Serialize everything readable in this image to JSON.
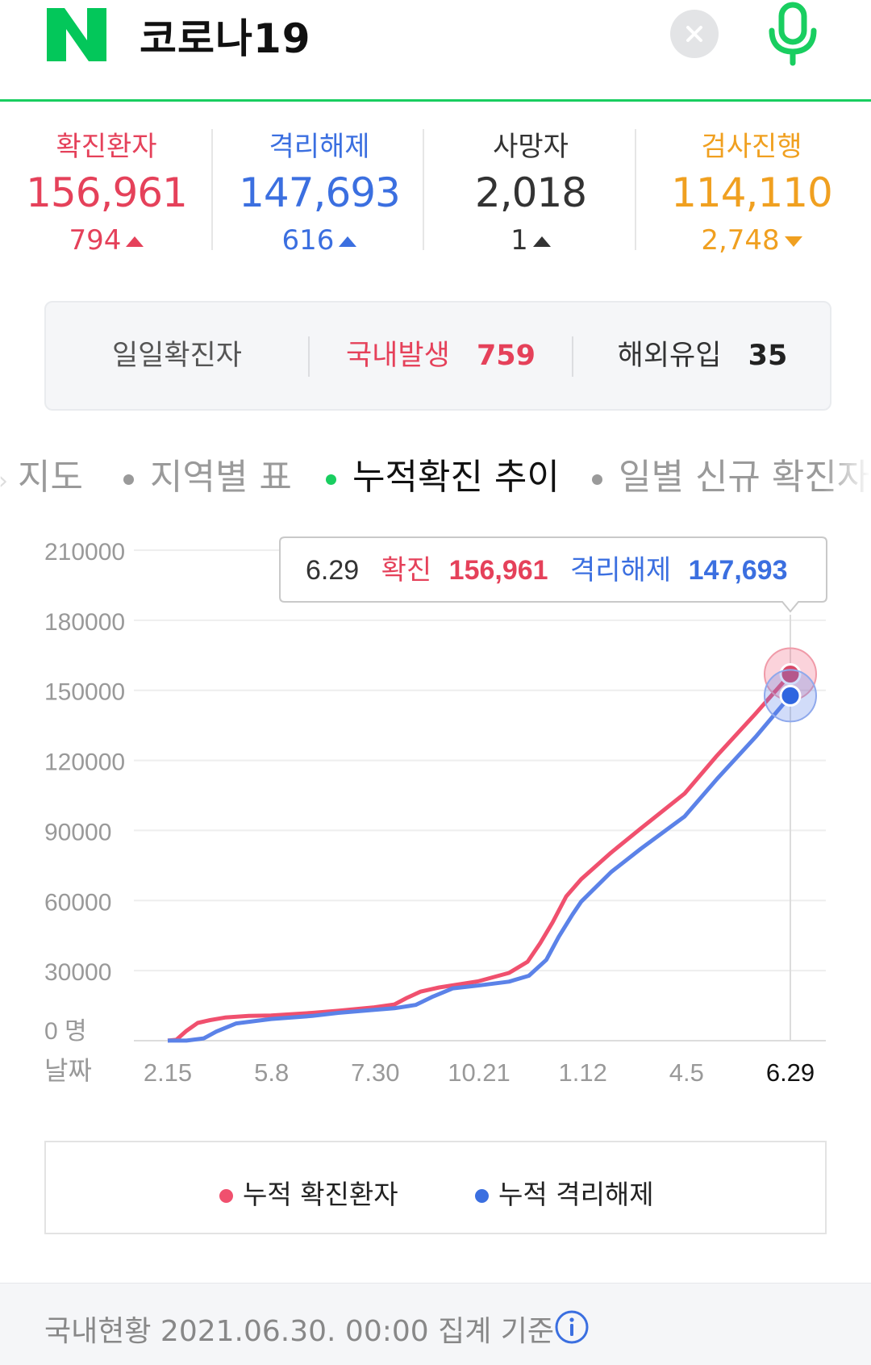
{
  "header": {
    "logo_letter": "N",
    "search_query": "코로나19",
    "brand_color": "#03c75a"
  },
  "stats": [
    {
      "label": "확진환자",
      "value": "156,961",
      "delta": "794",
      "direction": "up",
      "color": "#e5415a",
      "arrow_color": "#e5415a"
    },
    {
      "label": "격리해제",
      "value": "147,693",
      "delta": "616",
      "direction": "up",
      "color": "#3b6fe0",
      "arrow_color": "#3b6fe0"
    },
    {
      "label": "사망자",
      "value": "2,018",
      "delta": "1",
      "direction": "up",
      "color": "#333333",
      "arrow_color": "#333333"
    },
    {
      "label": "검사진행",
      "value": "114,110",
      "delta": "2,748",
      "direction": "down",
      "color": "#f0a020",
      "arrow_color": "#f0a020"
    }
  ],
  "daily": {
    "label": "일일확진자",
    "domestic_label": "국내발생",
    "domestic_value": "759",
    "overseas_label": "해외유입",
    "overseas_value": "35"
  },
  "tabs": [
    {
      "label": "지도",
      "active": false
    },
    {
      "label": "지역별 표",
      "active": false
    },
    {
      "label": "누적확진 추이",
      "active": true
    },
    {
      "label": "일별 신규 확진자",
      "active": false
    }
  ],
  "tooltip": {
    "date": "6.29",
    "confirmed_label": "확진",
    "confirmed_value": "156,961",
    "released_label": "격리해제",
    "released_value": "147,693"
  },
  "legend": {
    "confirmed": "누적 확진환자",
    "released": "누적 격리해제"
  },
  "footer": {
    "text": "국내현황 2021.06.30. 00:00 집계 기준"
  },
  "chart_data": {
    "type": "line",
    "y_unit_label": "명",
    "x_axis_label": "날짜",
    "ylim": [
      0,
      210000
    ],
    "y_ticks": [
      0,
      30000,
      60000,
      90000,
      120000,
      150000,
      180000,
      210000
    ],
    "x_ticks": [
      "2.15",
      "5.8",
      "7.30",
      "10.21",
      "1.12",
      "4.5",
      "6.29"
    ],
    "grid": true,
    "series": [
      {
        "name": "누적 확진환자",
        "color": "#f0506e",
        "x": [
          "2020-02-15",
          "2020-02-22",
          "2020-03-01",
          "2020-03-10",
          "2020-03-20",
          "2020-04-01",
          "2020-04-20",
          "2020-05-08",
          "2020-06-10",
          "2020-07-01",
          "2020-07-30",
          "2020-08-15",
          "2020-08-25",
          "2020-09-05",
          "2020-09-20",
          "2020-10-21",
          "2020-11-15",
          "2020-11-30",
          "2020-12-10",
          "2020-12-20",
          "2020-12-31",
          "2021-01-12",
          "2021-02-05",
          "2021-03-01",
          "2021-04-05",
          "2021-05-01",
          "2021-06-01",
          "2021-06-29"
        ],
        "y": [
          30,
          400,
          4200,
          7600,
          8800,
          9900,
          10600,
          10800,
          11900,
          12800,
          14300,
          15500,
          18300,
          21000,
          22800,
          25400,
          29000,
          33800,
          41700,
          50600,
          61800,
          69100,
          80500,
          90900,
          105800,
          122000,
          140000,
          156961
        ]
      },
      {
        "name": "누적 격리해제",
        "color": "#5b82e8",
        "x": [
          "2020-02-15",
          "2020-03-01",
          "2020-03-15",
          "2020-03-25",
          "2020-04-10",
          "2020-05-08",
          "2020-06-10",
          "2020-07-01",
          "2020-07-30",
          "2020-08-15",
          "2020-09-01",
          "2020-09-15",
          "2020-10-01",
          "2020-10-21",
          "2020-11-15",
          "2020-12-01",
          "2020-12-15",
          "2020-12-25",
          "2021-01-05",
          "2021-01-12",
          "2021-02-05",
          "2021-03-01",
          "2021-04-05",
          "2021-05-01",
          "2021-06-01",
          "2021-06-29"
        ],
        "y": [
          20,
          30,
          1000,
          3900,
          7400,
          9300,
          10600,
          11900,
          13200,
          13900,
          15300,
          18900,
          22400,
          23600,
          25300,
          27800,
          34600,
          44500,
          54000,
          59500,
          72200,
          82200,
          96000,
          112000,
          130000,
          147693
        ]
      }
    ]
  }
}
